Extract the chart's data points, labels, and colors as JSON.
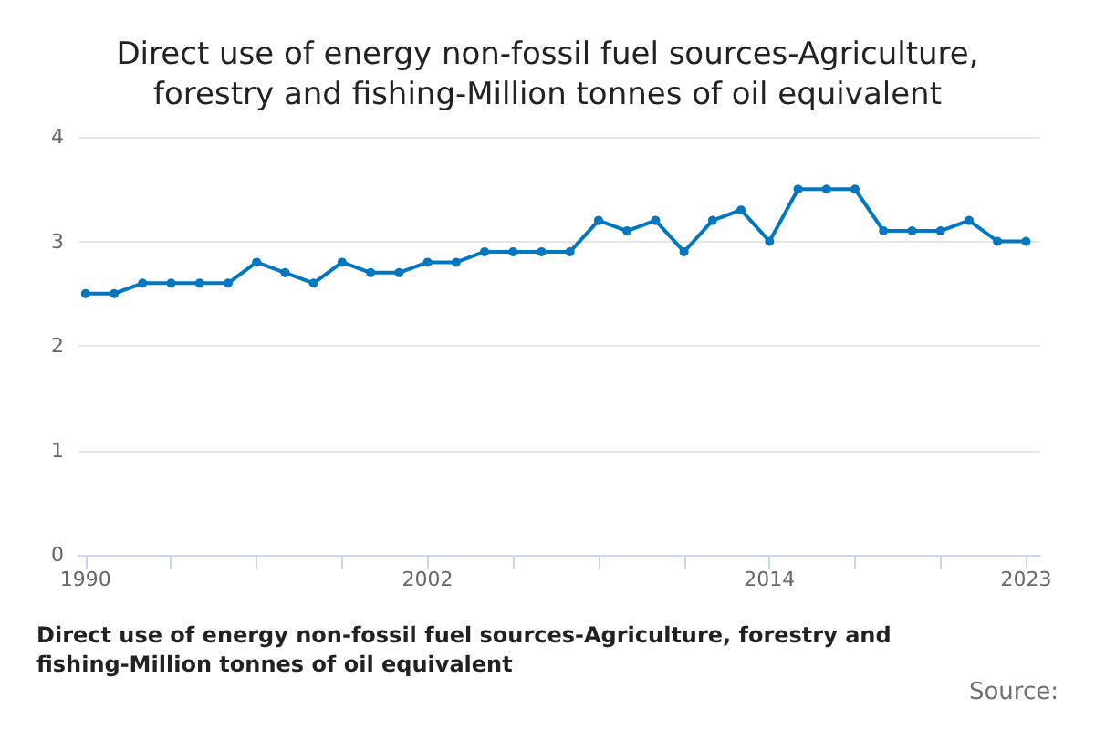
{
  "chart_data": {
    "type": "line",
    "title": "Direct use of energy non-fossil fuel sources-Agriculture,\nforestry and fishing-Million tonnes of oil equivalent",
    "xlabel": "Direct use of energy non-fossil fuel sources-Agriculture, forestry and fishing-Million tonnes of oil equivalent",
    "annotations": [
      "Source:"
    ],
    "x": [
      1990,
      1991,
      1992,
      1993,
      1994,
      1995,
      1996,
      1997,
      1998,
      1999,
      2000,
      2001,
      2002,
      2003,
      2004,
      2005,
      2006,
      2007,
      2008,
      2009,
      2010,
      2011,
      2012,
      2013,
      2014,
      2015,
      2016,
      2017,
      2018,
      2019,
      2020,
      2021,
      2022,
      2023
    ],
    "series": [
      {
        "color": "#0077c0",
        "values": [
          2.5,
          2.5,
          2.6,
          2.6,
          2.6,
          2.6,
          2.8,
          2.7,
          2.6,
          2.8,
          2.7,
          2.7,
          2.8,
          2.8,
          2.9,
          2.9,
          2.9,
          2.9,
          3.2,
          3.1,
          3.2,
          2.9,
          3.2,
          3.3,
          3.0,
          3.5,
          3.5,
          3.5,
          3.1,
          3.1,
          3.1,
          3.2,
          3.0,
          3.0
        ]
      }
    ],
    "xlim": [
      1989.75,
      2023.5
    ],
    "xticks": [
      1990,
      {
        "value": 1993,
        "label": null
      },
      {
        "value": 1996,
        "label": null
      },
      {
        "value": 1999,
        "label": null
      },
      2002,
      {
        "value": 2005,
        "label": null
      },
      {
        "value": 2008,
        "label": null
      },
      {
        "value": 2011,
        "label": null
      },
      2014,
      {
        "value": 2017,
        "label": null
      },
      {
        "value": 2020,
        "label": null
      },
      2023
    ],
    "ylim": [
      0,
      4
    ],
    "yticks": [
      0,
      1,
      2,
      3,
      4
    ],
    "grid": "y",
    "marker": "circle",
    "line_style": "solid"
  }
}
